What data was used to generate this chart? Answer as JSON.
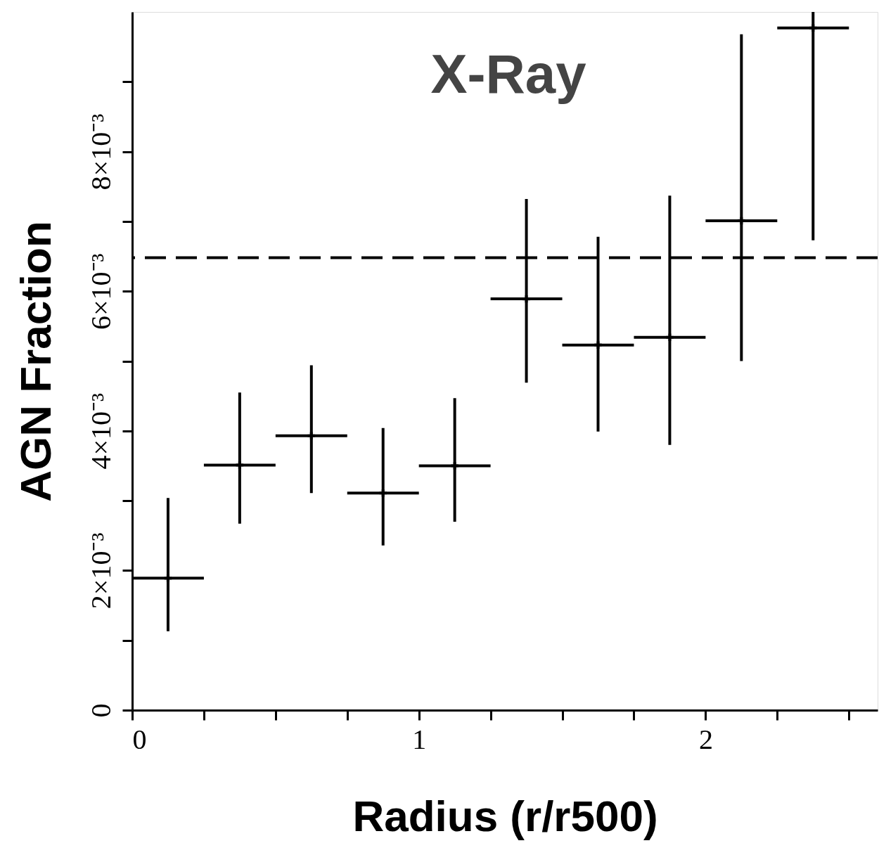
{
  "chart_data": {
    "type": "scatter",
    "title": "X-Ray",
    "xlabel": "Radius (r/r500)",
    "ylabel": "AGN Fraction",
    "x": [
      0.125,
      0.375,
      0.625,
      0.875,
      1.125,
      1.375,
      1.625,
      1.875,
      2.125,
      2.375
    ],
    "values": [
      0.00189,
      0.00351,
      0.00393,
      0.00311,
      0.0035,
      0.00589,
      0.00523,
      0.00534,
      0.00701,
      0.00977
    ],
    "errors": [
      [
        0.00113,
        0.00304
      ],
      [
        0.00267,
        0.00455
      ],
      [
        0.00311,
        0.00494
      ],
      [
        0.00236,
        0.00404
      ],
      [
        0.0027,
        0.00447
      ],
      [
        0.00469,
        0.00732
      ],
      [
        0.00399,
        0.00678
      ],
      [
        0.0038,
        0.00737
      ],
      [
        0.005,
        0.00968
      ],
      [
        0.00673,
        0.01
      ]
    ],
    "xerrors": [
      0.125,
      0.125,
      0.125,
      0.125,
      0.125,
      0.125,
      0.125,
      0.125,
      0.125,
      0.125
    ],
    "color": "#000000",
    "marker": "cross",
    "xlim": [
      0,
      2.6
    ],
    "ylim": [
      0,
      0.01
    ],
    "xticks": [
      0,
      {
        "value": 0.25,
        "label": null
      },
      {
        "value": 0.5,
        "label": null
      },
      {
        "value": 0.75,
        "label": null
      },
      1,
      {
        "value": 1.25,
        "label": null
      },
      {
        "value": 1.5,
        "label": null
      },
      {
        "value": 1.75,
        "label": null
      },
      2,
      {
        "value": 2.25,
        "label": null
      },
      {
        "value": 2.5,
        "label": null
      }
    ],
    "yticks": [
      0,
      {
        "value": 0.001,
        "label": null
      },
      {
        "value": 0.002,
        "label": "2×10⁻³"
      },
      {
        "value": 0.003,
        "label": null
      },
      {
        "value": 0.004,
        "label": "4×10⁻³"
      },
      {
        "value": 0.005,
        "label": null
      },
      {
        "value": 0.006,
        "label": "6×10⁻³"
      },
      {
        "value": 0.007,
        "label": null
      },
      {
        "value": 0.008,
        "label": "8×10⁻³"
      },
      {
        "value": 0.009,
        "label": null
      }
    ],
    "ref_lines": [
      {
        "axis": "y",
        "value": 0.00648,
        "line_style": "dashed",
        "color": "#000000"
      }
    ],
    "grid": false
  }
}
